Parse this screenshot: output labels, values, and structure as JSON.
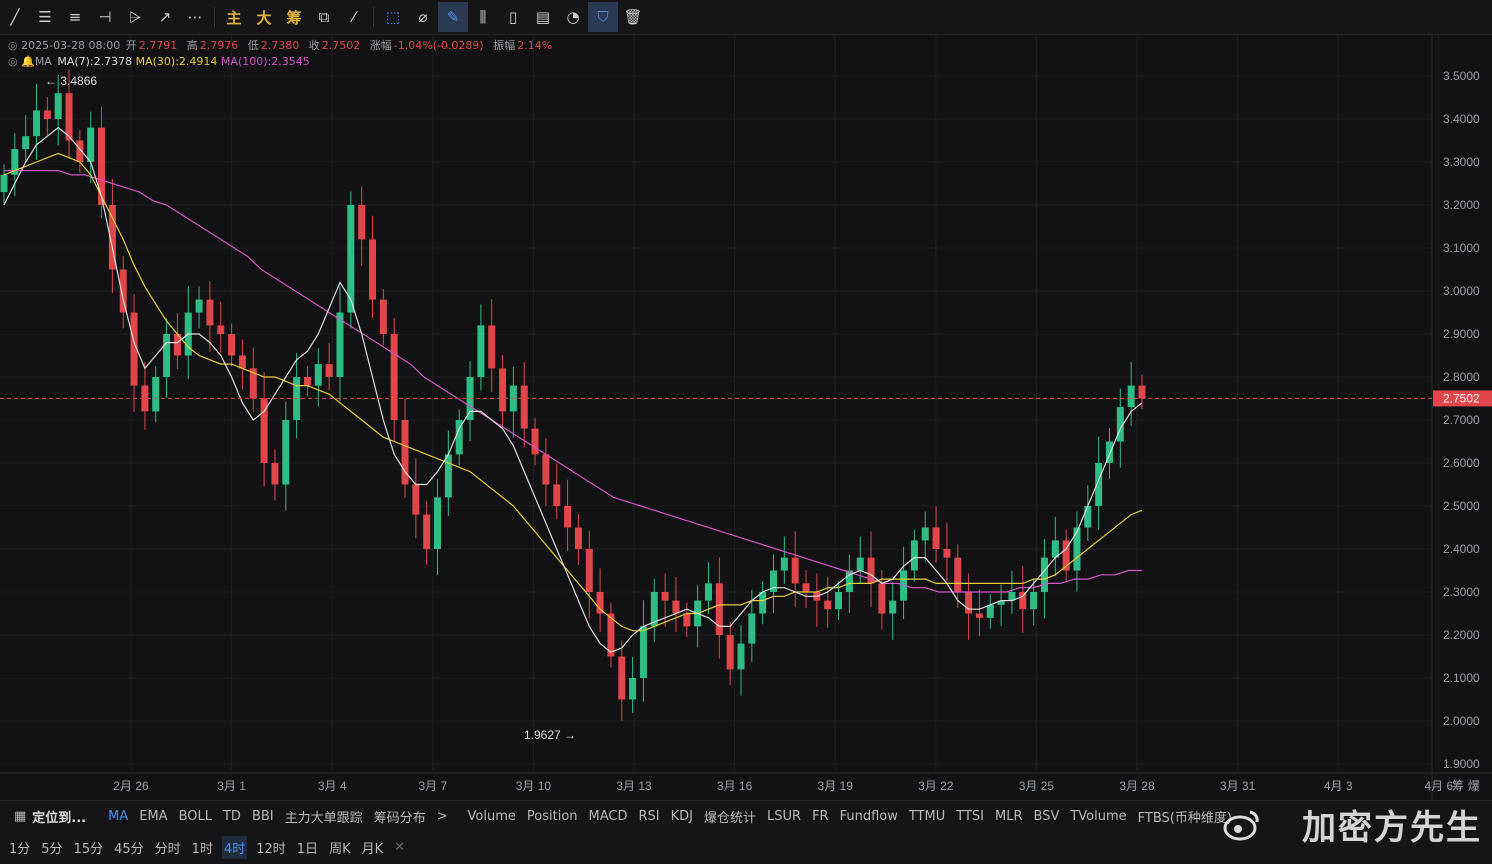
{
  "toolbar": {
    "icons": [
      "line-icon",
      "hline-icon",
      "channel-icon",
      "ray-icon",
      "pattern-icon",
      "arrow-icon",
      "more-icon"
    ],
    "text_buttons": [
      "主",
      "大",
      "筹"
    ],
    "right_icons": [
      "select-icon",
      "ruler-icon",
      "draw-active-icon",
      "candle-icon",
      "lock-icon",
      "note-icon",
      "magnet-icon",
      "filter-icon",
      "trash-icon"
    ]
  },
  "info": {
    "date": "2025-03-28 08:00",
    "open_label": "开",
    "open": "2.7791",
    "high_label": "高",
    "high": "2.7976",
    "low_label": "低",
    "low": "2.7380",
    "close_label": "收",
    "close": "2.7502",
    "change_label": "涨幅",
    "change": "-1.04%(-0.0289)",
    "amp_label": "振幅",
    "amp": "2.14%",
    "ma_label": "MA",
    "ma7": "MA(7):2.7378",
    "ma30": "MA(30):2.4914",
    "ma100": "MA(100):2.3545"
  },
  "colors": {
    "up": "#2ebd85",
    "down": "#e0464a",
    "ma7": "#dddddd",
    "ma30": "#e6cf3a",
    "ma100": "#d257c8",
    "price_line": "#e0464a"
  },
  "chart_data": {
    "type": "candlestick",
    "timeframe": "4时",
    "x_ticks": [
      "2月 26",
      "3月 1",
      "3月 4",
      "3月 7",
      "3月 10",
      "3月 13",
      "3月 16",
      "3月 19",
      "3月 22",
      "3月 25",
      "3月 28",
      "3月 31",
      "4月 3",
      "4月 6"
    ],
    "y_ticks": [
      "3.5000",
      "3.4000",
      "3.3000",
      "3.2000",
      "3.1000",
      "3.0000",
      "2.9000",
      "2.8000",
      "2.7000",
      "2.6000",
      "2.5000",
      "2.4000",
      "2.3000",
      "2.2000",
      "2.1000",
      "2.0000",
      "1.9000"
    ],
    "ylim": [
      1.9,
      3.5
    ],
    "last_price": "2.7502",
    "high_marker": "3.4866",
    "low_marker": "1.9627",
    "closes": [
      3.27,
      3.33,
      3.36,
      3.42,
      3.4,
      3.46,
      3.35,
      3.3,
      3.38,
      3.2,
      3.05,
      2.95,
      2.78,
      2.72,
      2.8,
      2.9,
      2.85,
      2.95,
      2.98,
      2.92,
      2.9,
      2.85,
      2.82,
      2.75,
      2.6,
      2.55,
      2.7,
      2.8,
      2.78,
      2.83,
      2.8,
      2.95,
      3.2,
      3.12,
      2.98,
      2.9,
      2.7,
      2.55,
      2.48,
      2.4,
      2.52,
      2.62,
      2.7,
      2.8,
      2.92,
      2.82,
      2.72,
      2.78,
      2.68,
      2.62,
      2.55,
      2.5,
      2.45,
      2.4,
      2.3,
      2.25,
      2.15,
      2.05,
      2.1,
      2.22,
      2.3,
      2.28,
      2.25,
      2.22,
      2.28,
      2.32,
      2.2,
      2.12,
      2.18,
      2.25,
      2.3,
      2.35,
      2.38,
      2.32,
      2.3,
      2.28,
      2.26,
      2.3,
      2.35,
      2.38,
      2.32,
      2.25,
      2.28,
      2.35,
      2.42,
      2.45,
      2.4,
      2.38,
      2.3,
      2.25,
      2.24,
      2.27,
      2.28,
      2.3,
      2.26,
      2.3,
      2.38,
      2.42,
      2.35,
      2.45,
      2.5,
      2.6,
      2.65,
      2.73,
      2.78,
      2.75
    ],
    "ma7": [
      3.2,
      3.25,
      3.3,
      3.34,
      3.36,
      3.38,
      3.36,
      3.33,
      3.3,
      3.22,
      3.1,
      2.98,
      2.88,
      2.82,
      2.85,
      2.88,
      2.88,
      2.9,
      2.9,
      2.88,
      2.85,
      2.8,
      2.74,
      2.7,
      2.72,
      2.76,
      2.8,
      2.84,
      2.86,
      2.9,
      2.96,
      3.02,
      2.98,
      2.9,
      2.8,
      2.7,
      2.62,
      2.58,
      2.55,
      2.55,
      2.58,
      2.62,
      2.68,
      2.72,
      2.72,
      2.7,
      2.68,
      2.64,
      2.58,
      2.52,
      2.46,
      2.4,
      2.34,
      2.28,
      2.22,
      2.18,
      2.16,
      2.17,
      2.2,
      2.22,
      2.23,
      2.24,
      2.25,
      2.26,
      2.25,
      2.24,
      2.22,
      2.22,
      2.25,
      2.28,
      2.3,
      2.31,
      2.31,
      2.3,
      2.29,
      2.29,
      2.3,
      2.32,
      2.34,
      2.35,
      2.34,
      2.32,
      2.33,
      2.36,
      2.38,
      2.38,
      2.35,
      2.32,
      2.28,
      2.26,
      2.26,
      2.27,
      2.28,
      2.28,
      2.29,
      2.32,
      2.35,
      2.38,
      2.4,
      2.44,
      2.5,
      2.56,
      2.62,
      2.68,
      2.72,
      2.74
    ],
    "ma30": [
      3.27,
      3.28,
      3.29,
      3.3,
      3.31,
      3.32,
      3.31,
      3.3,
      3.27,
      3.22,
      3.17,
      3.12,
      3.06,
      3.01,
      2.97,
      2.93,
      2.9,
      2.87,
      2.85,
      2.84,
      2.83,
      2.83,
      2.82,
      2.81,
      2.8,
      2.8,
      2.79,
      2.78,
      2.78,
      2.77,
      2.76,
      2.74,
      2.72,
      2.7,
      2.68,
      2.66,
      2.65,
      2.64,
      2.63,
      2.62,
      2.61,
      2.6,
      2.59,
      2.58,
      2.56,
      2.54,
      2.52,
      2.5,
      2.47,
      2.44,
      2.41,
      2.38,
      2.35,
      2.32,
      2.29,
      2.26,
      2.24,
      2.22,
      2.21,
      2.21,
      2.22,
      2.23,
      2.24,
      2.25,
      2.25,
      2.26,
      2.27,
      2.27,
      2.27,
      2.28,
      2.28,
      2.29,
      2.29,
      2.3,
      2.3,
      2.3,
      2.31,
      2.31,
      2.32,
      2.32,
      2.32,
      2.33,
      2.33,
      2.33,
      2.33,
      2.33,
      2.32,
      2.32,
      2.32,
      2.32,
      2.32,
      2.32,
      2.32,
      2.32,
      2.32,
      2.33,
      2.33,
      2.34,
      2.36,
      2.38,
      2.4,
      2.42,
      2.44,
      2.46,
      2.48,
      2.49
    ],
    "ma100": [
      3.28,
      3.28,
      3.28,
      3.28,
      3.28,
      3.27,
      3.27,
      3.26,
      3.25,
      3.24,
      3.23,
      3.21,
      3.2,
      3.18,
      3.16,
      3.14,
      3.12,
      3.1,
      3.08,
      3.05,
      3.03,
      3.01,
      2.99,
      2.97,
      2.95,
      2.93,
      2.91,
      2.89,
      2.87,
      2.85,
      2.83,
      2.8,
      2.78,
      2.76,
      2.74,
      2.72,
      2.7,
      2.68,
      2.66,
      2.64,
      2.62,
      2.6,
      2.58,
      2.56,
      2.54,
      2.52,
      2.51,
      2.5,
      2.49,
      2.48,
      2.47,
      2.46,
      2.45,
      2.44,
      2.43,
      2.42,
      2.41,
      2.4,
      2.39,
      2.38,
      2.37,
      2.36,
      2.35,
      2.34,
      2.33,
      2.32,
      2.32,
      2.31,
      2.31,
      2.3,
      2.3,
      2.3,
      2.3,
      2.3,
      2.3,
      2.31,
      2.31,
      2.32,
      2.32,
      2.33,
      2.33,
      2.34,
      2.34,
      2.35,
      2.35
    ]
  },
  "indicators": {
    "main": [
      "MA",
      "EMA",
      "BOLL",
      "TD",
      "BBI",
      "主力大单跟踪",
      "筹码分布"
    ],
    "sub": [
      "Volume",
      "Position",
      "MACD",
      "RSI",
      "KDJ",
      "爆仓统计",
      "LSUR",
      "FR",
      "Fundflow",
      "TTMU",
      "TTSI",
      "MLR",
      "BSV",
      "TVolume",
      "FTBS(币种维度)"
    ],
    "locate_label": "定位到...",
    "more": ">"
  },
  "timeframes": [
    "1分",
    "5分",
    "15分",
    "45分",
    "分时",
    "1时",
    "4时",
    "12时",
    "1日",
    "周K",
    "月K"
  ],
  "active_timeframe": "4时",
  "watermark": "加密方先生"
}
